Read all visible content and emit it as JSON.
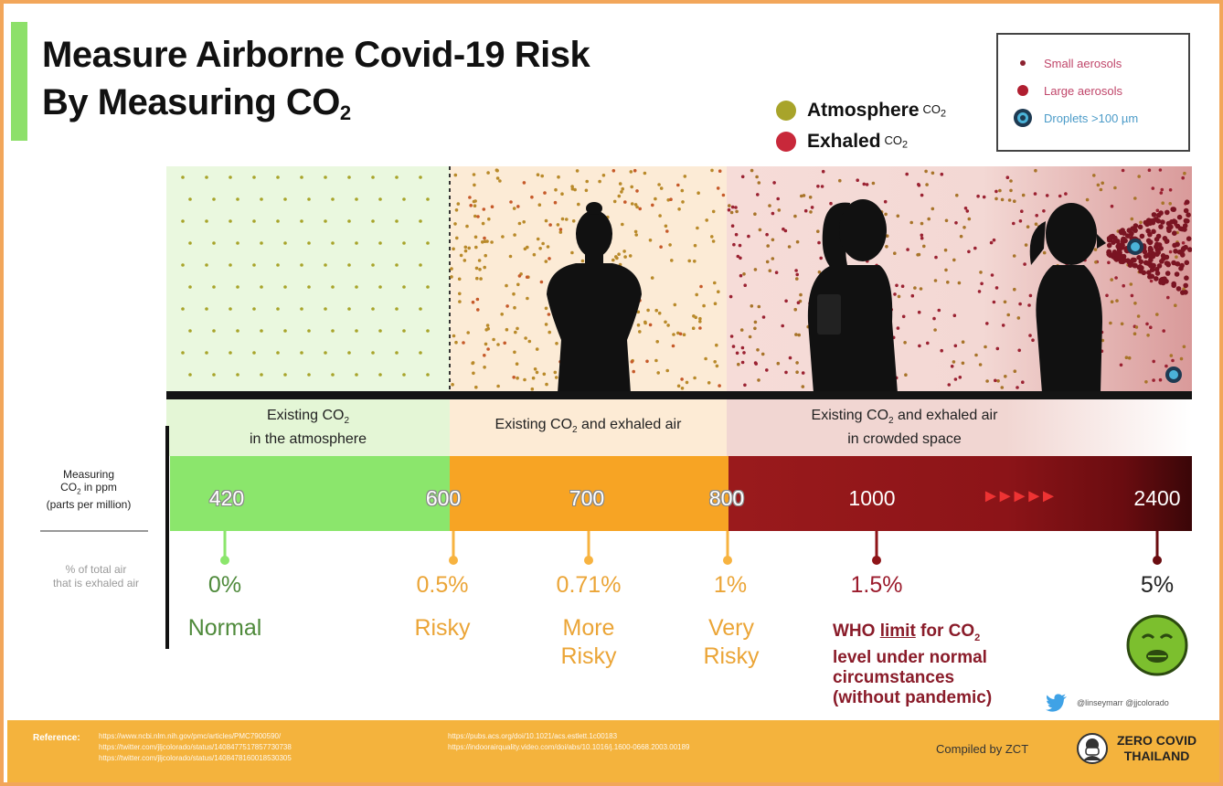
{
  "title": {
    "line1": "Measure Airborne Covid-19 Risk",
    "line2_prefix": "By Measuring CO",
    "line2_sub": "2"
  },
  "legend": {
    "atmosphere": {
      "label": "Atmosphere",
      "small": "CO",
      "sub": "2",
      "color": "#a8a42a"
    },
    "exhaled": {
      "label": "Exhaled",
      "small": "CO",
      "sub": "2",
      "color": "#c8283a"
    }
  },
  "aerosol_legend": {
    "small": "Small aerosols",
    "large": "Large aerosols",
    "droplets": "Droplets >100 µm"
  },
  "zones": [
    {
      "text_a": "Existing CO",
      "sub": "2",
      "text_b": "in the atmosphere"
    },
    {
      "text_a": "Existing CO",
      "sub": "2",
      "text_b": " and exhaled air"
    },
    {
      "text_a": "Existing CO",
      "sub": "2",
      "text_b": " and exhaled air",
      "text_c": "in crowded space"
    }
  ],
  "side": {
    "measuring_a": "Measuring",
    "measuring_b": "CO",
    "measuring_sub": "2",
    "measuring_c": " in ppm",
    "measuring_d": "(parts per million)",
    "pct_a": "% of total air",
    "pct_b": "that is exhaled air"
  },
  "scale": {
    "ppm": [
      "420",
      "600",
      "700",
      "800",
      "1000",
      "2400"
    ],
    "arrows": "►►►►►"
  },
  "markers": [
    {
      "pct": "0%",
      "risk_a": "Normal",
      "risk_b": ""
    },
    {
      "pct": "0.5%",
      "risk_a": "Risky",
      "risk_b": ""
    },
    {
      "pct": "0.71%",
      "risk_a": "More",
      "risk_b": "Risky"
    },
    {
      "pct": "1%",
      "risk_a": "Very",
      "risk_b": "Risky"
    },
    {
      "pct": "1.5%",
      "risk_a": "",
      "risk_b": ""
    },
    {
      "pct": "5%",
      "risk_a": "",
      "risk_b": ""
    }
  ],
  "who_note": {
    "a": "WHO ",
    "limit": "limit",
    "b": " for CO",
    "sub": "2",
    "line2": "level under normal",
    "line3": "circumstances",
    "line4": "(without pandemic)"
  },
  "credits": "@linseymarr @jjcolorado",
  "footer": {
    "reference_label": "Reference:",
    "refs_left": [
      "https://www.ncbi.nlm.nih.gov/pmc/articles/PMC7900590/",
      "https://twitter.com/jljcolorado/status/1408477517857730738",
      "https://twitter.com/jljcolorado/status/1408478160018530305"
    ],
    "refs_right": [
      "https://pubs.acs.org/doi/10.1021/acs.estlett.1c00183",
      "https://indoorairquality.video.com/doi/abs/10.1016/j.1600-0668.2003.00189"
    ],
    "compiled": "Compiled by ZCT",
    "logo_a": "ZERO COVID",
    "logo_b": "THAILAND"
  },
  "colors": {
    "green": "#8be66c",
    "orange": "#f7a424",
    "dark_red": "#8e1418",
    "text_green": "#4f8a3b",
    "text_orange": "#eba537",
    "text_red": "#9b1b2c"
  }
}
